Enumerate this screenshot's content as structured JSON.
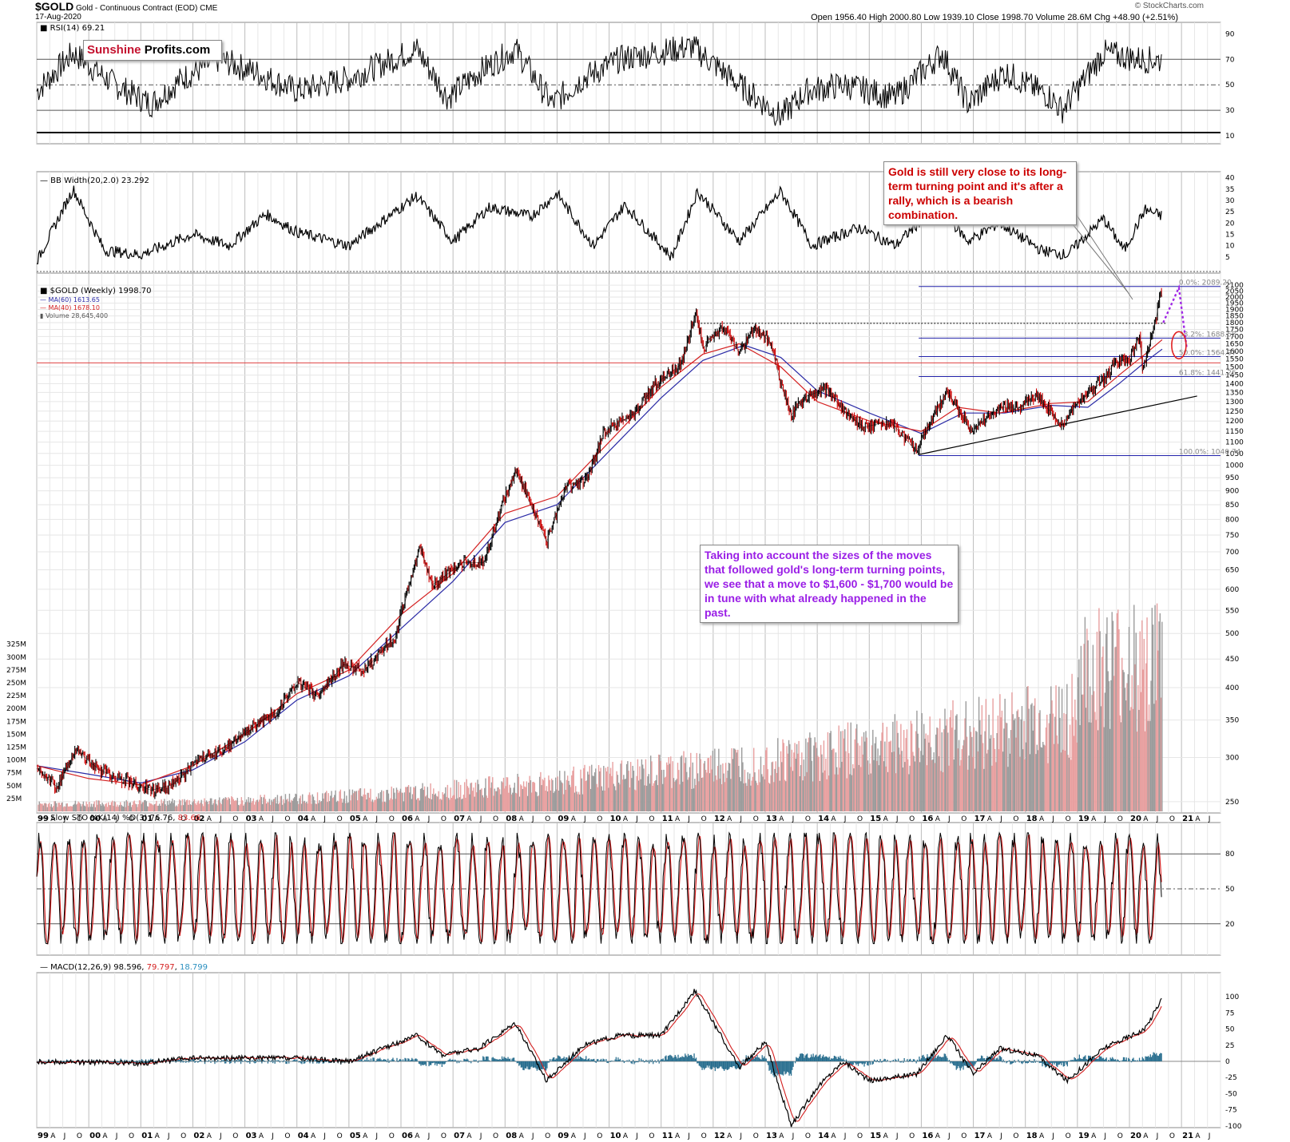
{
  "header": {
    "symbol": "$GOLD",
    "description": "Gold - Continuous Contract (EOD)",
    "exchange": "CME",
    "date": "17-Aug-2020",
    "ohlc_line": "Open 1956.40  High 2000.80  Low 1939.10  Close 1998.70  Volume 28.6M  Chg +48.90 (+2.51%)",
    "logo": "© StockCharts.com"
  },
  "brand": {
    "sunshine": "Sunshine",
    "profits": "Profits.com",
    "sunshine_color": "#c4122f"
  },
  "annotations": {
    "top_note": "Gold is still very close to its long-term turning point and it's after a rally, which is a bearish combination.",
    "mid_note": "Taking into account the sizes of the moves that followed gold's long-term turning points, we see that a move to $1,600 - $1,700 would be in tune with what already happened in the past.",
    "top_note_color": "#cc0000",
    "mid_note_color": "#9a1ee6"
  },
  "chart_data": {
    "type": "line",
    "x_axis_labels": [
      "99",
      "A",
      "J",
      "O",
      "00",
      "A",
      "J",
      "O",
      "01",
      "A",
      "J",
      "O",
      "02",
      "A",
      "J",
      "O",
      "03",
      "A",
      "J",
      "O",
      "04",
      "A",
      "J",
      "O",
      "05",
      "A",
      "J",
      "O",
      "06",
      "A",
      "J",
      "O",
      "07",
      "A",
      "J",
      "O",
      "08",
      "A",
      "J",
      "O",
      "09",
      "A",
      "J",
      "O",
      "10",
      "A",
      "J",
      "O",
      "11",
      "A",
      "J",
      "O",
      "12",
      "A",
      "J",
      "O",
      "13",
      "A",
      "J",
      "O",
      "14",
      "A",
      "J",
      "O",
      "15",
      "A",
      "J",
      "O",
      "16",
      "A",
      "J",
      "O",
      "17",
      "A",
      "J",
      "O",
      "18",
      "A",
      "J",
      "O",
      "19",
      "A",
      "J",
      "O",
      "20",
      "A",
      "J",
      "O",
      "21",
      "A",
      "J",
      "O"
    ],
    "year_labels": [
      "99",
      "00",
      "01",
      "02",
      "03",
      "04",
      "05",
      "06",
      "07",
      "08",
      "09",
      "10",
      "11",
      "12",
      "13",
      "14",
      "15",
      "16",
      "17",
      "18",
      "19",
      "20",
      "21"
    ],
    "panels": {
      "rsi": {
        "legend": "RSI(14) 69.21",
        "ticks": [
          10,
          30,
          50,
          70,
          90
        ],
        "levels": [
          30,
          50,
          70
        ],
        "points": [
          [
            1999,
            45
          ],
          [
            1999.7,
            75
          ],
          [
            2000.5,
            50
          ],
          [
            2001.2,
            35
          ],
          [
            2001.8,
            55
          ],
          [
            2002.5,
            70
          ],
          [
            2003.2,
            60
          ],
          [
            2004,
            45
          ],
          [
            2005,
            55
          ],
          [
            2006.3,
            78
          ],
          [
            2006.9,
            40
          ],
          [
            2007.5,
            60
          ],
          [
            2008.2,
            78
          ],
          [
            2008.9,
            35
          ],
          [
            2009.5,
            55
          ],
          [
            2010.2,
            70
          ],
          [
            2011.6,
            80
          ],
          [
            2012.5,
            50
          ],
          [
            2013.3,
            25
          ],
          [
            2013.8,
            45
          ],
          [
            2014.5,
            50
          ],
          [
            2015.5,
            40
          ],
          [
            2016.4,
            75
          ],
          [
            2016.9,
            35
          ],
          [
            2017.6,
            60
          ],
          [
            2018.5,
            40
          ],
          [
            2018.7,
            30
          ],
          [
            2019.5,
            75
          ],
          [
            2020.2,
            70
          ],
          [
            2020.6,
            69.21
          ]
        ]
      },
      "bb_width": {
        "legend": "BB Width(20,2.0) 23.292",
        "ticks": [
          5,
          10,
          15,
          20,
          25,
          30,
          35,
          40
        ],
        "points": [
          [
            1999,
            3
          ],
          [
            1999.7,
            35
          ],
          [
            2000.3,
            8
          ],
          [
            2001,
            6
          ],
          [
            2002,
            15
          ],
          [
            2002.7,
            10
          ],
          [
            2003.4,
            24
          ],
          [
            2004,
            16
          ],
          [
            2005,
            10
          ],
          [
            2006.3,
            32
          ],
          [
            2007,
            12
          ],
          [
            2007.7,
            27
          ],
          [
            2008.5,
            23
          ],
          [
            2009,
            33
          ],
          [
            2009.7,
            10
          ],
          [
            2010.3,
            28
          ],
          [
            2011.2,
            5
          ],
          [
            2011.7,
            34
          ],
          [
            2012.5,
            12
          ],
          [
            2013.3,
            34
          ],
          [
            2013.9,
            10
          ],
          [
            2014.8,
            18
          ],
          [
            2015.5,
            10
          ],
          [
            2016.3,
            28
          ],
          [
            2016.9,
            12
          ],
          [
            2017.5,
            20
          ],
          [
            2018.3,
            8
          ],
          [
            2018.8,
            6
          ],
          [
            2019.5,
            22
          ],
          [
            2019.9,
            8
          ],
          [
            2020.3,
            26
          ],
          [
            2020.6,
            23.292
          ]
        ]
      },
      "price": {
        "legend": "$GOLD (Weekly) 1998.70",
        "legend_ma60": "MA(60) 1613.65",
        "legend_ma40": "MA(40) 1678.10",
        "legend_volume": "Volume 28,645,400",
        "scale": "log",
        "ticks": [
          250,
          300,
          350,
          400,
          450,
          500,
          550,
          600,
          650,
          700,
          750,
          800,
          850,
          900,
          950,
          1000,
          1050,
          1100,
          1150,
          1200,
          1250,
          1300,
          1350,
          1400,
          1450,
          1500,
          1550,
          1600,
          1650,
          1700,
          1750,
          1800,
          1850,
          1900,
          1950,
          2000,
          2050,
          2100
        ],
        "series_gold": [
          [
            1999,
            287
          ],
          [
            1999.4,
            265
          ],
          [
            1999.75,
            310
          ],
          [
            2000.2,
            285
          ],
          [
            2000.6,
            275
          ],
          [
            2001.2,
            262
          ],
          [
            2001.6,
            268
          ],
          [
            2002.2,
            300
          ],
          [
            2002.7,
            315
          ],
          [
            2003.2,
            345
          ],
          [
            2003.6,
            360
          ],
          [
            2004,
            410
          ],
          [
            2004.4,
            385
          ],
          [
            2004.9,
            440
          ],
          [
            2005.3,
            430
          ],
          [
            2005.9,
            495
          ],
          [
            2006.37,
            715
          ],
          [
            2006.6,
            610
          ],
          [
            2007.2,
            670
          ],
          [
            2007.6,
            670
          ],
          [
            2008.2,
            980
          ],
          [
            2008.8,
            730
          ],
          [
            2009.2,
            920
          ],
          [
            2009.6,
            950
          ],
          [
            2009.9,
            1150
          ],
          [
            2010.5,
            1240
          ],
          [
            2010.9,
            1400
          ],
          [
            2011.4,
            1520
          ],
          [
            2011.67,
            1880
          ],
          [
            2011.8,
            1620
          ],
          [
            2012.2,
            1760
          ],
          [
            2012.5,
            1590
          ],
          [
            2012.8,
            1770
          ],
          [
            2013.1,
            1660
          ],
          [
            2013.3,
            1400
          ],
          [
            2013.5,
            1230
          ],
          [
            2013.8,
            1330
          ],
          [
            2014.2,
            1370
          ],
          [
            2014.5,
            1250
          ],
          [
            2014.9,
            1170
          ],
          [
            2015.4,
            1200
          ],
          [
            2015.9,
            1060
          ],
          [
            2016.5,
            1360
          ],
          [
            2016.95,
            1150
          ],
          [
            2017.5,
            1270
          ],
          [
            2017.9,
            1270
          ],
          [
            2018.2,
            1340
          ],
          [
            2018.7,
            1180
          ],
          [
            2019.0,
            1290
          ],
          [
            2019.5,
            1420
          ],
          [
            2019.7,
            1520
          ],
          [
            2020.0,
            1560
          ],
          [
            2020.2,
            1700
          ],
          [
            2020.25,
            1470
          ],
          [
            2020.5,
            1800
          ],
          [
            2020.6,
            2050
          ],
          [
            2020.63,
            1998.7
          ]
        ],
        "series_ma40": [
          [
            1999,
            290
          ],
          [
            2000,
            275
          ],
          [
            2001,
            268
          ],
          [
            2002,
            290
          ],
          [
            2003,
            330
          ],
          [
            2004,
            390
          ],
          [
            2005,
            430
          ],
          [
            2006,
            540
          ],
          [
            2007,
            640
          ],
          [
            2008,
            820
          ],
          [
            2009,
            880
          ],
          [
            2010,
            1100
          ],
          [
            2011,
            1380
          ],
          [
            2011.8,
            1580
          ],
          [
            2012.5,
            1650
          ],
          [
            2013.3,
            1500
          ],
          [
            2014,
            1300
          ],
          [
            2015,
            1200
          ],
          [
            2016,
            1150
          ],
          [
            2016.7,
            1270
          ],
          [
            2017.5,
            1240
          ],
          [
            2018.5,
            1290
          ],
          [
            2019.2,
            1300
          ],
          [
            2019.8,
            1450
          ],
          [
            2020.3,
            1580
          ],
          [
            2020.63,
            1678.1
          ]
        ],
        "series_ma60": [
          [
            1999,
            290
          ],
          [
            2000,
            280
          ],
          [
            2001,
            270
          ],
          [
            2002,
            285
          ],
          [
            2003,
            320
          ],
          [
            2004,
            380
          ],
          [
            2005,
            420
          ],
          [
            2006,
            510
          ],
          [
            2007,
            620
          ],
          [
            2008,
            790
          ],
          [
            2009,
            850
          ],
          [
            2010,
            1060
          ],
          [
            2011,
            1320
          ],
          [
            2011.8,
            1540
          ],
          [
            2012.6,
            1640
          ],
          [
            2013.3,
            1560
          ],
          [
            2014,
            1360
          ],
          [
            2015,
            1240
          ],
          [
            2016,
            1140
          ],
          [
            2016.8,
            1240
          ],
          [
            2017.6,
            1240
          ],
          [
            2018.5,
            1280
          ],
          [
            2019.2,
            1270
          ],
          [
            2019.8,
            1400
          ],
          [
            2020.3,
            1530
          ],
          [
            2020.63,
            1613.65
          ]
        ],
        "fib_levels": [
          {
            "label": "0.0%: 2089.20",
            "value": 2089.2
          },
          {
            "label": "38.2%: 1688.68",
            "value": 1688.68
          },
          {
            "label": "50.0%: 1564.97",
            "value": 1564.97
          },
          {
            "label": "61.8%: 1441.26",
            "value": 1441.26
          },
          {
            "label": "100.0%: 1040.74",
            "value": 1040.74
          }
        ],
        "horizontal_red": 1525,
        "dotted_resistance": 1795,
        "trendline": [
          [
            2015.95,
            1045
          ],
          [
            2021.3,
            1330
          ]
        ],
        "projection": [
          [
            2020.65,
            1800
          ],
          [
            2020.95,
            2080
          ],
          [
            2021.1,
            1620
          ]
        ]
      },
      "volume": {
        "ticks": [
          "25M",
          "50M",
          "75M",
          "100M",
          "125M",
          "150M",
          "175M",
          "200M",
          "225M",
          "250M",
          "275M",
          "300M",
          "325M"
        ],
        "last": 28.6
      },
      "slow_sto": {
        "legend_prefix": "Slow STO %K(14) %D(3) 76.76, ",
        "legend_d": "83.66",
        "ticks": [
          20,
          50,
          80
        ],
        "levels": [
          20,
          50,
          80
        ]
      },
      "macd": {
        "legend_prefix": "MACD(12,26,9) 98.596, ",
        "legend_signal": "79.797",
        "legend_sep": ", ",
        "legend_hist": "18.799",
        "ticks": [
          -100,
          -75,
          -50,
          -25,
          0,
          25,
          50,
          75,
          100
        ],
        "points": [
          [
            1999,
            0
          ],
          [
            2001,
            -3
          ],
          [
            2002,
            5
          ],
          [
            2004,
            5
          ],
          [
            2005,
            0
          ],
          [
            2006.3,
            40
          ],
          [
            2006.8,
            10
          ],
          [
            2007.5,
            20
          ],
          [
            2008.2,
            60
          ],
          [
            2008.8,
            -30
          ],
          [
            2009.5,
            25
          ],
          [
            2010.2,
            40
          ],
          [
            2011.0,
            40
          ],
          [
            2011.65,
            110
          ],
          [
            2012.5,
            -10
          ],
          [
            2013.0,
            30
          ],
          [
            2013.5,
            -100
          ],
          [
            2014.0,
            -40
          ],
          [
            2014.5,
            0
          ],
          [
            2015.0,
            -30
          ],
          [
            2015.9,
            -20
          ],
          [
            2016.5,
            40
          ],
          [
            2017.0,
            -20
          ],
          [
            2017.5,
            20
          ],
          [
            2018.2,
            10
          ],
          [
            2018.8,
            -30
          ],
          [
            2019.5,
            20
          ],
          [
            2019.9,
            35
          ],
          [
            2020.3,
            50
          ],
          [
            2020.63,
            98.596
          ]
        ]
      }
    }
  }
}
